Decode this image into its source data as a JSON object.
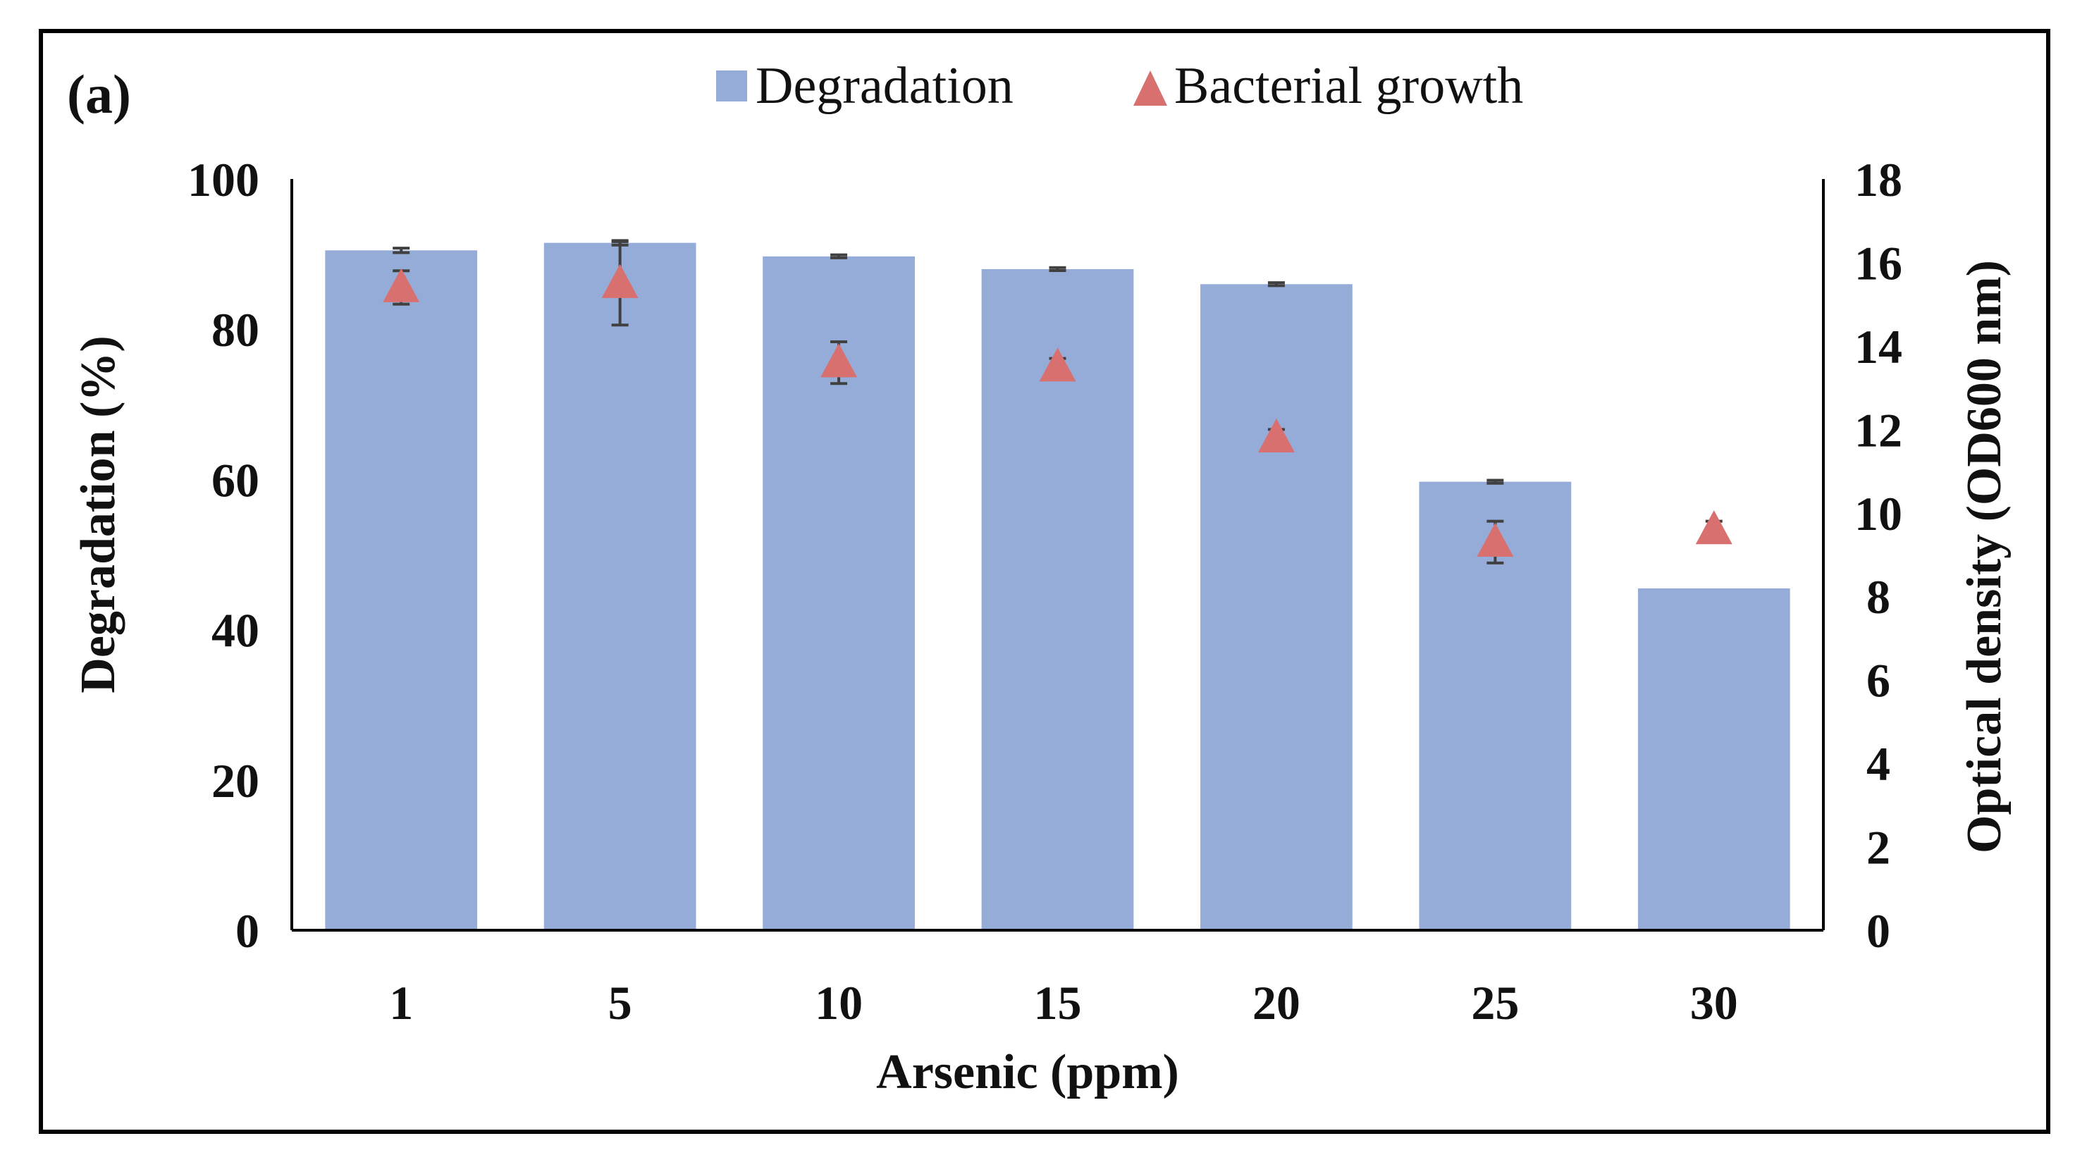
{
  "chart_data": {
    "type": "bar",
    "panel_label": "(a)",
    "categories": [
      "1",
      "5",
      "10",
      "15",
      "20",
      "25",
      "30"
    ],
    "xlabel": "Arsenic (ppm)",
    "ylabel": "Degradation (%)",
    "y2label": "Optical density (OD600 nm)",
    "ylim": [
      0,
      100
    ],
    "y2lim": [
      0,
      18
    ],
    "yticks": [
      "0",
      "20",
      "40",
      "60",
      "80",
      "100"
    ],
    "y2ticks": [
      "0",
      "2",
      "4",
      "6",
      "8",
      "10",
      "12",
      "14",
      "16",
      "18"
    ],
    "series": [
      {
        "name": "Degradation",
        "kind": "bar",
        "axis": "left",
        "color": "#95acd9",
        "values": [
          90.5,
          91.5,
          89.7,
          88.0,
          86.0,
          59.7,
          45.5
        ],
        "errors": [
          0.3,
          0.3,
          0.2,
          0.2,
          0.2,
          0.2,
          0.0
        ]
      },
      {
        "name": "Bacterial growth",
        "kind": "scatter",
        "axis": "right",
        "color": "#d97070",
        "marker": "triangle",
        "values": [
          15.4,
          15.5,
          13.6,
          13.5,
          11.8,
          9.3,
          9.6
        ],
        "errors": [
          0.4,
          1.0,
          0.5,
          0.2,
          0.2,
          0.5,
          0.2
        ]
      }
    ]
  }
}
